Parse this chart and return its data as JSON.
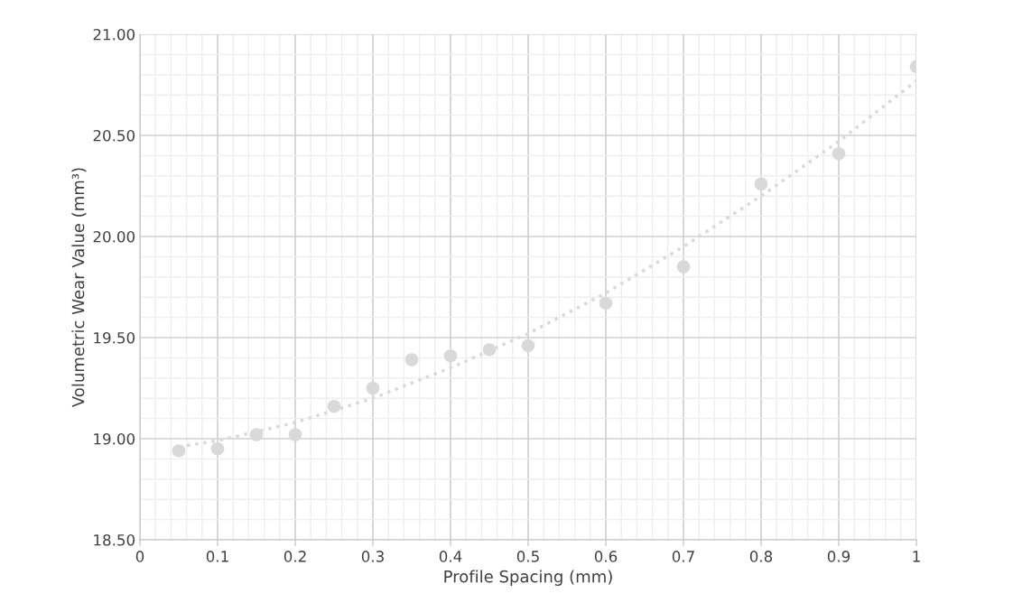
{
  "chart_data": {
    "type": "scatter",
    "xlabel": "Profile Spacing (mm)",
    "ylabel": "Volumetric Wear Value (mm³)",
    "x": [
      0.05,
      0.1,
      0.15,
      0.2,
      0.25,
      0.3,
      0.35,
      0.4,
      0.45,
      0.5,
      0.6,
      0.7,
      0.8,
      0.9,
      1.0
    ],
    "series": [
      {
        "color": "#d9d9d9",
        "marker": "circle",
        "values": [
          18.94,
          18.95,
          19.02,
          19.02,
          19.16,
          19.25,
          19.39,
          19.41,
          19.44,
          19.46,
          19.67,
          19.85,
          20.26,
          20.41,
          20.84
        ]
      },
      {
        "type": "line",
        "color": "#d9d9d9",
        "line_style": "dotted",
        "marker": "none",
        "x": [
          0.05,
          0.1,
          0.2,
          0.3,
          0.4,
          0.5,
          0.6,
          0.7,
          0.8,
          0.9,
          1.0
        ],
        "values": [
          18.96,
          18.99,
          19.08,
          19.2,
          19.35,
          19.52,
          19.72,
          19.95,
          20.2,
          20.47,
          20.77
        ]
      }
    ],
    "xlim": [
      0,
      1
    ],
    "xticks": [
      {
        "value": 0,
        "label": "0"
      },
      0.1,
      0.2,
      0.3,
      0.4,
      0.5,
      0.6,
      0.7,
      0.8,
      0.9,
      {
        "value": 1,
        "label": "1"
      }
    ],
    "ylim": [
      18.5,
      21.0
    ],
    "yticks": [
      {
        "value": 18.5,
        "label": "18.50"
      },
      {
        "value": 19.0,
        "label": "19.00"
      },
      {
        "value": 19.5,
        "label": "19.50"
      },
      {
        "value": 20.0,
        "label": "20.00"
      },
      {
        "value": 20.5,
        "label": "20.50"
      },
      {
        "value": 21.0,
        "label": "21.00"
      }
    ],
    "grid": true
  }
}
